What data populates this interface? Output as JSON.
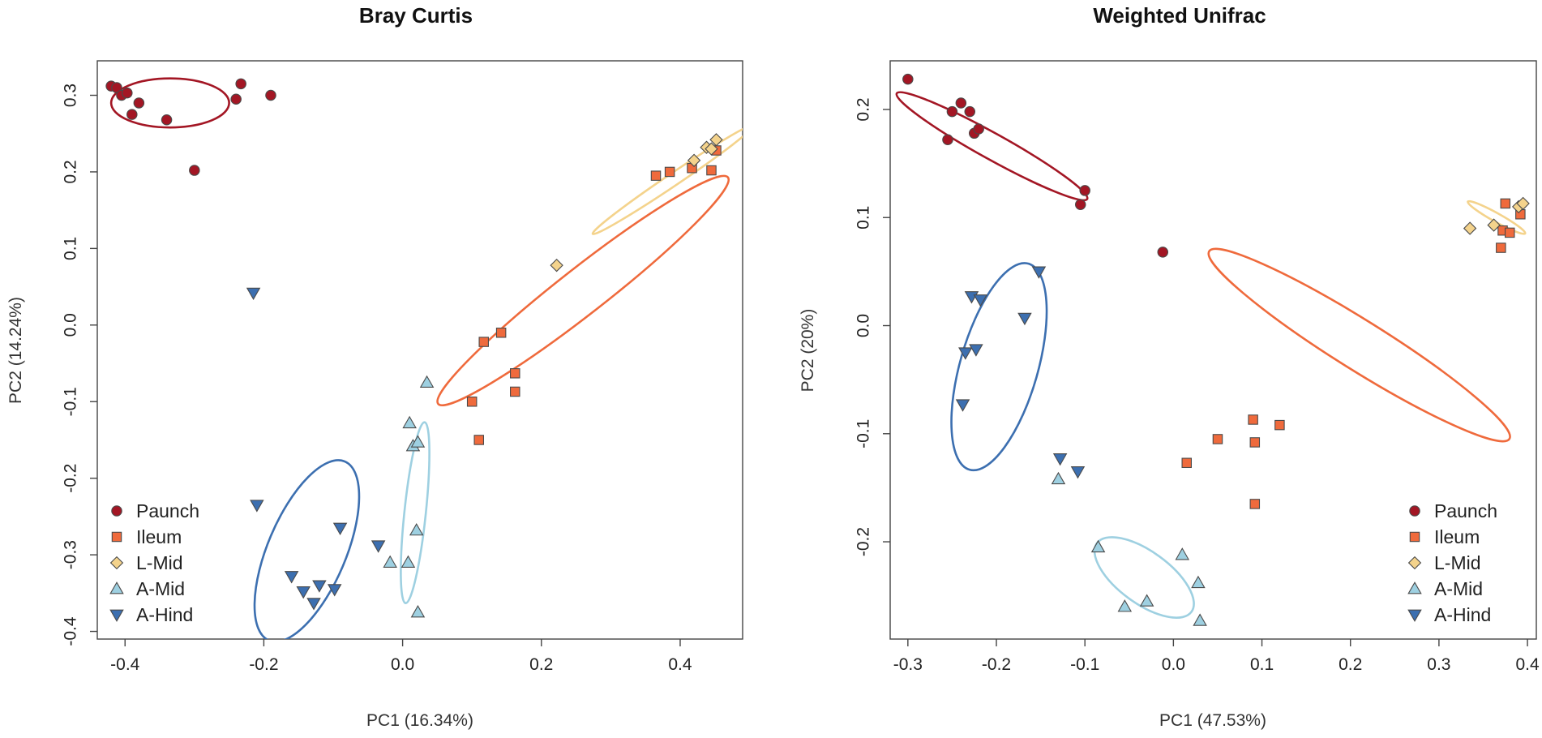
{
  "legend": [
    {
      "key": "paunch",
      "label": "Paunch",
      "shape": "circle",
      "color": "#a31624"
    },
    {
      "key": "ileum",
      "label": "Ileum",
      "shape": "square",
      "color": "#ef6a3c"
    },
    {
      "key": "lmid",
      "label": "L-Mid",
      "shape": "diamond",
      "color": "#f4d38c"
    },
    {
      "key": "amid",
      "label": "A-Mid",
      "shape": "triangle-up",
      "color": "#9ed0e1"
    },
    {
      "key": "ahind",
      "label": "A-Hind",
      "shape": "triangle-down",
      "color": "#3c6fb0"
    }
  ],
  "chart_data": [
    {
      "type": "scatter",
      "title": "Bray Curtis",
      "xlabel": "PC1 (16.34%)",
      "ylabel": "PC2 (14.24%)",
      "xlim": [
        -0.44,
        0.49
      ],
      "ylim": [
        -0.41,
        0.345
      ],
      "xticks": [
        -0.4,
        -0.2,
        0.0,
        0.2,
        0.4
      ],
      "xtick_labels": [
        "-0.4",
        "-0.2",
        "0.0",
        "0.2",
        "0.4"
      ],
      "yticks": [
        -0.4,
        -0.3,
        -0.2,
        -0.1,
        0.0,
        0.1,
        0.2,
        0.3
      ],
      "ytick_labels": [
        "-0.4",
        "-0.3",
        "-0.2",
        "-0.1",
        "0.0",
        "0.1",
        "0.2",
        "0.3"
      ],
      "legend_position": "bottom-left",
      "series": [
        {
          "key": "paunch",
          "name": "Paunch",
          "points": [
            [
              -0.42,
              0.312
            ],
            [
              -0.412,
              0.31
            ],
            [
              -0.405,
              0.3
            ],
            [
              -0.397,
              0.303
            ],
            [
              -0.39,
              0.275
            ],
            [
              -0.38,
              0.29
            ],
            [
              -0.34,
              0.268
            ],
            [
              -0.3,
              0.202
            ],
            [
              -0.24,
              0.295
            ],
            [
              -0.233,
              0.315
            ],
            [
              -0.19,
              0.3
            ]
          ]
        },
        {
          "key": "ileum",
          "name": "Ileum",
          "points": [
            [
              0.1,
              -0.1
            ],
            [
              0.11,
              -0.15
            ],
            [
              0.117,
              -0.022
            ],
            [
              0.142,
              -0.01
            ],
            [
              0.162,
              -0.063
            ],
            [
              0.162,
              -0.087
            ],
            [
              0.365,
              0.195
            ],
            [
              0.385,
              0.2
            ],
            [
              0.417,
              0.205
            ],
            [
              0.445,
              0.202
            ],
            [
              0.452,
              0.228
            ]
          ]
        },
        {
          "key": "lmid",
          "name": "L-Mid",
          "points": [
            [
              0.222,
              0.078
            ],
            [
              0.42,
              0.215
            ],
            [
              0.438,
              0.232
            ],
            [
              0.445,
              0.23
            ],
            [
              0.452,
              0.242
            ]
          ]
        },
        {
          "key": "amid",
          "name": "A-Mid",
          "points": [
            [
              -0.018,
              -0.31
            ],
            [
              0.008,
              -0.31
            ],
            [
              0.01,
              -0.128
            ],
            [
              0.015,
              -0.158
            ],
            [
              0.02,
              -0.268
            ],
            [
              0.022,
              -0.153
            ],
            [
              0.022,
              -0.375
            ],
            [
              0.035,
              -0.075
            ]
          ]
        },
        {
          "key": "ahind",
          "name": "A-Hind",
          "points": [
            [
              -0.215,
              0.042
            ],
            [
              -0.21,
              -0.235
            ],
            [
              -0.16,
              -0.328
            ],
            [
              -0.143,
              -0.348
            ],
            [
              -0.128,
              -0.363
            ],
            [
              -0.12,
              -0.34
            ],
            [
              -0.098,
              -0.345
            ],
            [
              -0.09,
              -0.265
            ],
            [
              -0.035,
              -0.288
            ]
          ]
        }
      ],
      "ellipses": [
        {
          "key": "paunch",
          "cx": -0.335,
          "cy": 0.29,
          "rx": 0.085,
          "ry": 0.032,
          "angle": 0
        },
        {
          "key": "ileum",
          "cx": 0.26,
          "cy": 0.045,
          "rx": 0.265,
          "ry": 0.03,
          "angle": 38
        },
        {
          "key": "lmid",
          "cx": 0.39,
          "cy": 0.19,
          "rx": 0.14,
          "ry": 0.008,
          "angle": 34
        },
        {
          "key": "amid",
          "cx": 0.018,
          "cy": -0.245,
          "rx": 0.131,
          "ry": 0.014,
          "angle": 84
        },
        {
          "key": "ahind",
          "cx": -0.138,
          "cy": -0.295,
          "rx": 0.14,
          "ry": 0.051,
          "angle": 67
        }
      ]
    },
    {
      "type": "scatter",
      "title": "Weighted Unifrac",
      "xlabel": "PC1 (47.53%)",
      "ylabel": "PC2 (20%)",
      "xlim": [
        -0.32,
        0.41
      ],
      "ylim": [
        -0.29,
        0.245
      ],
      "xticks": [
        -0.3,
        -0.2,
        -0.1,
        0.0,
        0.1,
        0.2,
        0.3,
        0.4
      ],
      "xtick_labels": [
        "-0.3",
        "-0.2",
        "-0.1",
        "0.0",
        "0.1",
        "0.2",
        "0.3",
        "0.4"
      ],
      "yticks": [
        -0.2,
        -0.1,
        0.0,
        0.1,
        0.2
      ],
      "ytick_labels": [
        "-0.2",
        "-0.1",
        "0.0",
        "0.1",
        "0.2"
      ],
      "legend_position": "bottom-right",
      "series": [
        {
          "key": "paunch",
          "name": "Paunch",
          "points": [
            [
              -0.3,
              0.228
            ],
            [
              -0.255,
              0.172
            ],
            [
              -0.25,
              0.198
            ],
            [
              -0.24,
              0.206
            ],
            [
              -0.23,
              0.198
            ],
            [
              -0.225,
              0.178
            ],
            [
              -0.22,
              0.182
            ],
            [
              -0.105,
              0.112
            ],
            [
              -0.1,
              0.125
            ],
            [
              -0.012,
              0.068
            ]
          ]
        },
        {
          "key": "ileum",
          "name": "Ileum",
          "points": [
            [
              0.015,
              -0.127
            ],
            [
              0.05,
              -0.105
            ],
            [
              0.09,
              -0.087
            ],
            [
              0.092,
              -0.108
            ],
            [
              0.092,
              -0.165
            ],
            [
              0.12,
              -0.092
            ],
            [
              0.37,
              0.072
            ],
            [
              0.372,
              0.088
            ],
            [
              0.375,
              0.113
            ],
            [
              0.38,
              0.086
            ],
            [
              0.392,
              0.103
            ]
          ]
        },
        {
          "key": "lmid",
          "name": "L-Mid",
          "points": [
            [
              0.335,
              0.09
            ],
            [
              0.362,
              0.093
            ],
            [
              0.39,
              0.11
            ],
            [
              0.395,
              0.113
            ]
          ]
        },
        {
          "key": "amid",
          "name": "A-Mid",
          "points": [
            [
              -0.13,
              -0.142
            ],
            [
              -0.085,
              -0.205
            ],
            [
              -0.055,
              -0.26
            ],
            [
              -0.03,
              -0.255
            ],
            [
              0.01,
              -0.212
            ],
            [
              0.028,
              -0.238
            ],
            [
              0.03,
              -0.273
            ]
          ]
        },
        {
          "key": "ahind",
          "name": "A-Hind",
          "points": [
            [
              -0.238,
              -0.073
            ],
            [
              -0.235,
              -0.025
            ],
            [
              -0.228,
              0.027
            ],
            [
              -0.223,
              -0.022
            ],
            [
              -0.218,
              0.024
            ],
            [
              -0.168,
              0.007
            ],
            [
              -0.152,
              0.05
            ],
            [
              -0.128,
              -0.123
            ],
            [
              -0.108,
              -0.135
            ]
          ]
        }
      ],
      "ellipses": [
        {
          "key": "paunch",
          "cx": -0.205,
          "cy": 0.166,
          "rx": 0.123,
          "ry": 0.012,
          "angle": -29
        },
        {
          "key": "ileum",
          "cx": 0.21,
          "cy": -0.018,
          "rx": 0.2,
          "ry": 0.023,
          "angle": -32
        },
        {
          "key": "lmid",
          "cx": 0.365,
          "cy": 0.1,
          "rx": 0.037,
          "ry": 0.004,
          "angle": -29
        },
        {
          "key": "amid",
          "cx": -0.033,
          "cy": -0.233,
          "rx": 0.066,
          "ry": 0.024,
          "angle": -36
        },
        {
          "key": "ahind",
          "cx": -0.197,
          "cy": -0.038,
          "rx": 0.121,
          "ry": 0.036,
          "angle": 74
        }
      ]
    }
  ]
}
